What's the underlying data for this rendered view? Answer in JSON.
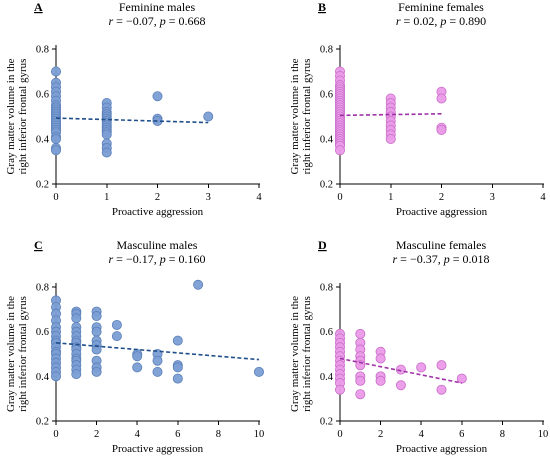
{
  "figure": {
    "x_axis_label": "Proactive aggression",
    "y_axis_label_line1": "Gray matter volume in the",
    "y_axis_label_line2": "right inferior frontal gyrus"
  },
  "chart_data": [
    {
      "type": "scatter",
      "letter": "A",
      "title": "Feminine males",
      "stat": "r = −0.07, p = 0.668",
      "xlim": [
        0,
        4
      ],
      "ylim": [
        0.2,
        0.8
      ],
      "xticks": [
        "0",
        "1",
        "2",
        "3",
        "4"
      ],
      "yticks": [
        "0.2",
        "0.4",
        "0.6",
        "0.8"
      ],
      "color": "#7b9ed4",
      "stroke": "#5a7fb8",
      "line_color": "#1f4e8c",
      "trend": {
        "x": [
          0,
          3
        ],
        "y": [
          0.493,
          0.473
        ]
      },
      "points": [
        [
          0,
          0.7
        ],
        [
          0,
          0.65
        ],
        [
          0,
          0.63
        ],
        [
          0,
          0.61
        ],
        [
          0,
          0.59
        ],
        [
          0,
          0.57
        ],
        [
          0,
          0.55
        ],
        [
          0,
          0.54
        ],
        [
          0,
          0.53
        ],
        [
          0,
          0.52
        ],
        [
          0,
          0.51
        ],
        [
          0,
          0.5
        ],
        [
          0,
          0.49
        ],
        [
          0,
          0.48
        ],
        [
          0,
          0.47
        ],
        [
          0,
          0.46
        ],
        [
          0,
          0.45
        ],
        [
          0,
          0.44
        ],
        [
          0,
          0.43
        ],
        [
          0,
          0.41
        ],
        [
          0,
          0.4
        ],
        [
          0,
          0.36
        ],
        [
          0,
          0.35
        ],
        [
          1,
          0.56
        ],
        [
          1,
          0.54
        ],
        [
          1,
          0.52
        ],
        [
          1,
          0.51
        ],
        [
          1,
          0.5
        ],
        [
          1,
          0.49
        ],
        [
          1,
          0.48
        ],
        [
          1,
          0.47
        ],
        [
          1,
          0.46
        ],
        [
          1,
          0.45
        ],
        [
          1,
          0.44
        ],
        [
          1,
          0.43
        ],
        [
          1,
          0.42
        ],
        [
          1,
          0.38
        ],
        [
          1,
          0.36
        ],
        [
          1,
          0.34
        ],
        [
          2,
          0.59
        ],
        [
          2,
          0.49
        ],
        [
          2,
          0.48
        ],
        [
          3,
          0.5
        ]
      ]
    },
    {
      "type": "scatter",
      "letter": "B",
      "title": "Feminine females",
      "stat": "r = 0.02, p = 0.890",
      "xlim": [
        0,
        4
      ],
      "ylim": [
        0.2,
        0.8
      ],
      "xticks": [
        "0",
        "1",
        "2",
        "3",
        "4"
      ],
      "yticks": [
        "0.2",
        "0.4",
        "0.6",
        "0.8"
      ],
      "color": "#ea9be8",
      "stroke": "#c86cc8",
      "line_color": "#a030a8",
      "trend": {
        "x": [
          0,
          2
        ],
        "y": [
          0.505,
          0.512
        ]
      },
      "points": [
        [
          0,
          0.7
        ],
        [
          0,
          0.68
        ],
        [
          0,
          0.66
        ],
        [
          0,
          0.64
        ],
        [
          0,
          0.63
        ],
        [
          0,
          0.62
        ],
        [
          0,
          0.61
        ],
        [
          0,
          0.6
        ],
        [
          0,
          0.59
        ],
        [
          0,
          0.58
        ],
        [
          0,
          0.57
        ],
        [
          0,
          0.56
        ],
        [
          0,
          0.55
        ],
        [
          0,
          0.54
        ],
        [
          0,
          0.53
        ],
        [
          0,
          0.52
        ],
        [
          0,
          0.51
        ],
        [
          0,
          0.5
        ],
        [
          0,
          0.49
        ],
        [
          0,
          0.48
        ],
        [
          0,
          0.47
        ],
        [
          0,
          0.46
        ],
        [
          0,
          0.45
        ],
        [
          0,
          0.44
        ],
        [
          0,
          0.43
        ],
        [
          0,
          0.42
        ],
        [
          0,
          0.41
        ],
        [
          0,
          0.4
        ],
        [
          0,
          0.39
        ],
        [
          0,
          0.38
        ],
        [
          0,
          0.37
        ],
        [
          0,
          0.35
        ],
        [
          1,
          0.58
        ],
        [
          1,
          0.56
        ],
        [
          1,
          0.54
        ],
        [
          1,
          0.52
        ],
        [
          1,
          0.5
        ],
        [
          1,
          0.48
        ],
        [
          1,
          0.46
        ],
        [
          1,
          0.44
        ],
        [
          1,
          0.42
        ],
        [
          1,
          0.4
        ],
        [
          2,
          0.61
        ],
        [
          2,
          0.58
        ],
        [
          2,
          0.45
        ],
        [
          2,
          0.44
        ]
      ]
    },
    {
      "type": "scatter",
      "letter": "C",
      "title": "Masculine males",
      "stat": "r = −0.17, p = 0.160",
      "xlim": [
        0,
        10
      ],
      "ylim": [
        0.2,
        0.8
      ],
      "xticks": [
        "0",
        "2",
        "4",
        "6",
        "8",
        "10"
      ],
      "yticks": [
        "0.2",
        "0.4",
        "0.6",
        "0.8"
      ],
      "color": "#7b9ed4",
      "stroke": "#5a7fb8",
      "line_color": "#1f4e8c",
      "trend": {
        "x": [
          0,
          10
        ],
        "y": [
          0.55,
          0.475
        ]
      },
      "points": [
        [
          0,
          0.74
        ],
        [
          0,
          0.71
        ],
        [
          0,
          0.68
        ],
        [
          0,
          0.65
        ],
        [
          0,
          0.62
        ],
        [
          0,
          0.6
        ],
        [
          0,
          0.58
        ],
        [
          0,
          0.56
        ],
        [
          0,
          0.55
        ],
        [
          0,
          0.53
        ],
        [
          0,
          0.51
        ],
        [
          0,
          0.5
        ],
        [
          0,
          0.48
        ],
        [
          0,
          0.46
        ],
        [
          0,
          0.44
        ],
        [
          0,
          0.42
        ],
        [
          0,
          0.4
        ],
        [
          1,
          0.69
        ],
        [
          1,
          0.68
        ],
        [
          1,
          0.66
        ],
        [
          1,
          0.62
        ],
        [
          1,
          0.6
        ],
        [
          1,
          0.58
        ],
        [
          1,
          0.56
        ],
        [
          1,
          0.55
        ],
        [
          1,
          0.53
        ],
        [
          1,
          0.52
        ],
        [
          1,
          0.5
        ],
        [
          1,
          0.48
        ],
        [
          1,
          0.47
        ],
        [
          1,
          0.45
        ],
        [
          1,
          0.43
        ],
        [
          1,
          0.41
        ],
        [
          2,
          0.69
        ],
        [
          2,
          0.67
        ],
        [
          2,
          0.62
        ],
        [
          2,
          0.6
        ],
        [
          2,
          0.56
        ],
        [
          2,
          0.54
        ],
        [
          2,
          0.52
        ],
        [
          2,
          0.47
        ],
        [
          2,
          0.44
        ],
        [
          2,
          0.42
        ],
        [
          3,
          0.63
        ],
        [
          3,
          0.58
        ],
        [
          4,
          0.5
        ],
        [
          4,
          0.49
        ],
        [
          4,
          0.44
        ],
        [
          5,
          0.5
        ],
        [
          5,
          0.47
        ],
        [
          5,
          0.42
        ],
        [
          6,
          0.56
        ],
        [
          6,
          0.45
        ],
        [
          6,
          0.44
        ],
        [
          6,
          0.39
        ],
        [
          7,
          0.81
        ],
        [
          10,
          0.42
        ]
      ]
    },
    {
      "type": "scatter",
      "letter": "D",
      "title": "Masculine females",
      "stat": "r = −0.37, p = 0.018",
      "xlim": [
        0,
        10
      ],
      "ylim": [
        0.2,
        0.8
      ],
      "xticks": [
        "0",
        "2",
        "4",
        "6",
        "8",
        "10"
      ],
      "yticks": [
        "0.2",
        "0.4",
        "0.6",
        "0.8"
      ],
      "color": "#ea9be8",
      "stroke": "#c86cc8",
      "line_color": "#a030a8",
      "trend": {
        "x": [
          0,
          6
        ],
        "y": [
          0.48,
          0.37
        ]
      },
      "points": [
        [
          0,
          0.59
        ],
        [
          0,
          0.57
        ],
        [
          0,
          0.55
        ],
        [
          0,
          0.53
        ],
        [
          0,
          0.51
        ],
        [
          0,
          0.49
        ],
        [
          0,
          0.47
        ],
        [
          0,
          0.45
        ],
        [
          0,
          0.43
        ],
        [
          0,
          0.41
        ],
        [
          0,
          0.39
        ],
        [
          0,
          0.37
        ],
        [
          0,
          0.34
        ],
        [
          1,
          0.59
        ],
        [
          1,
          0.55
        ],
        [
          1,
          0.52
        ],
        [
          1,
          0.49
        ],
        [
          1,
          0.47
        ],
        [
          1,
          0.45
        ],
        [
          1,
          0.4
        ],
        [
          1,
          0.38
        ],
        [
          1,
          0.32
        ],
        [
          2,
          0.51
        ],
        [
          2,
          0.48
        ],
        [
          2,
          0.4
        ],
        [
          2,
          0.38
        ],
        [
          3,
          0.43
        ],
        [
          3,
          0.36
        ],
        [
          4,
          0.44
        ],
        [
          5,
          0.45
        ],
        [
          5,
          0.34
        ],
        [
          6,
          0.39
        ]
      ]
    }
  ]
}
